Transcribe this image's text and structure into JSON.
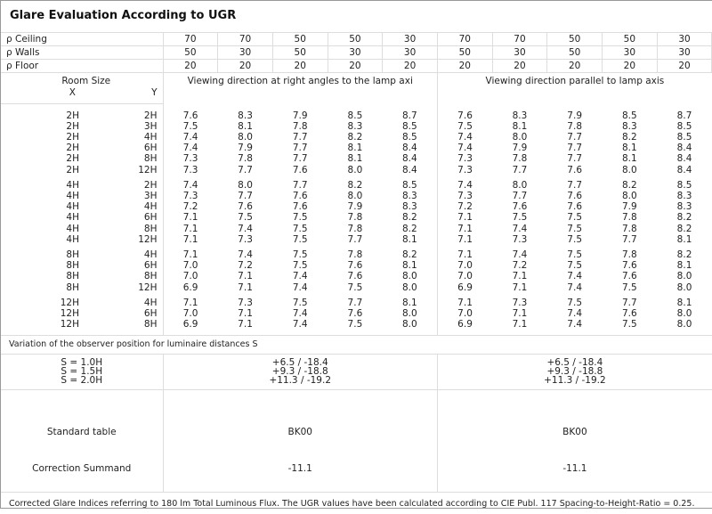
{
  "title": "Glare Evaluation According to UGR",
  "reflectances": [
    {
      "label": "ρ  Ceiling",
      "values": [
        "70",
        "70",
        "50",
        "50",
        "30",
        "70",
        "70",
        "50",
        "50",
        "30"
      ]
    },
    {
      "label": "ρ  Walls",
      "values": [
        "50",
        "30",
        "50",
        "30",
        "30",
        "50",
        "30",
        "50",
        "30",
        "30"
      ]
    },
    {
      "label": "ρ  Floor",
      "values": [
        "20",
        "20",
        "20",
        "20",
        "20",
        "20",
        "20",
        "20",
        "20",
        "20"
      ]
    }
  ],
  "room_size_label": "Room Size",
  "x_label": "X",
  "y_label": "Y",
  "right_angles_header": "Viewing direction at right angles to the lamp axi",
  "parallel_header": "Viewing direction parallel to lamp axis",
  "groups": [
    [
      {
        "x": "2H",
        "y": "2H",
        "right": [
          "7.6",
          "8.3",
          "7.9",
          "8.5",
          "8.7"
        ],
        "parallel": [
          "7.6",
          "8.3",
          "7.9",
          "8.5",
          "8.7"
        ]
      },
      {
        "x": "2H",
        "y": "3H",
        "right": [
          "7.5",
          "8.1",
          "7.8",
          "8.3",
          "8.5"
        ],
        "parallel": [
          "7.5",
          "8.1",
          "7.8",
          "8.3",
          "8.5"
        ]
      },
      {
        "x": "2H",
        "y": "4H",
        "right": [
          "7.4",
          "8.0",
          "7.7",
          "8.2",
          "8.5"
        ],
        "parallel": [
          "7.4",
          "8.0",
          "7.7",
          "8.2",
          "8.5"
        ]
      },
      {
        "x": "2H",
        "y": "6H",
        "right": [
          "7.4",
          "7.9",
          "7.7",
          "8.1",
          "8.4"
        ],
        "parallel": [
          "7.4",
          "7.9",
          "7.7",
          "8.1",
          "8.4"
        ]
      },
      {
        "x": "2H",
        "y": "8H",
        "right": [
          "7.3",
          "7.8",
          "7.7",
          "8.1",
          "8.4"
        ],
        "parallel": [
          "7.3",
          "7.8",
          "7.7",
          "8.1",
          "8.4"
        ]
      },
      {
        "x": "2H",
        "y": "12H",
        "right": [
          "7.3",
          "7.7",
          "7.6",
          "8.0",
          "8.4"
        ],
        "parallel": [
          "7.3",
          "7.7",
          "7.6",
          "8.0",
          "8.4"
        ]
      }
    ],
    [
      {
        "x": "4H",
        "y": "2H",
        "right": [
          "7.4",
          "8.0",
          "7.7",
          "8.2",
          "8.5"
        ],
        "parallel": [
          "7.4",
          "8.0",
          "7.7",
          "8.2",
          "8.5"
        ]
      },
      {
        "x": "4H",
        "y": "3H",
        "right": [
          "7.3",
          "7.7",
          "7.6",
          "8.0",
          "8.3"
        ],
        "parallel": [
          "7.3",
          "7.7",
          "7.6",
          "8.0",
          "8.3"
        ]
      },
      {
        "x": "4H",
        "y": "4H",
        "right": [
          "7.2",
          "7.6",
          "7.6",
          "7.9",
          "8.3"
        ],
        "parallel": [
          "7.2",
          "7.6",
          "7.6",
          "7.9",
          "8.3"
        ]
      },
      {
        "x": "4H",
        "y": "6H",
        "right": [
          "7.1",
          "7.5",
          "7.5",
          "7.8",
          "8.2"
        ],
        "parallel": [
          "7.1",
          "7.5",
          "7.5",
          "7.8",
          "8.2"
        ]
      },
      {
        "x": "4H",
        "y": "8H",
        "right": [
          "7.1",
          "7.4",
          "7.5",
          "7.8",
          "8.2"
        ],
        "parallel": [
          "7.1",
          "7.4",
          "7.5",
          "7.8",
          "8.2"
        ]
      },
      {
        "x": "4H",
        "y": "12H",
        "right": [
          "7.1",
          "7.3",
          "7.5",
          "7.7",
          "8.1"
        ],
        "parallel": [
          "7.1",
          "7.3",
          "7.5",
          "7.7",
          "8.1"
        ]
      }
    ],
    [
      {
        "x": "8H",
        "y": "4H",
        "right": [
          "7.1",
          "7.4",
          "7.5",
          "7.8",
          "8.2"
        ],
        "parallel": [
          "7.1",
          "7.4",
          "7.5",
          "7.8",
          "8.2"
        ]
      },
      {
        "x": "8H",
        "y": "6H",
        "right": [
          "7.0",
          "7.2",
          "7.5",
          "7.6",
          "8.1"
        ],
        "parallel": [
          "7.0",
          "7.2",
          "7.5",
          "7.6",
          "8.1"
        ]
      },
      {
        "x": "8H",
        "y": "8H",
        "right": [
          "7.0",
          "7.1",
          "7.4",
          "7.6",
          "8.0"
        ],
        "parallel": [
          "7.0",
          "7.1",
          "7.4",
          "7.6",
          "8.0"
        ]
      },
      {
        "x": "8H",
        "y": "12H",
        "right": [
          "6.9",
          "7.1",
          "7.4",
          "7.5",
          "8.0"
        ],
        "parallel": [
          "6.9",
          "7.1",
          "7.4",
          "7.5",
          "8.0"
        ]
      }
    ],
    [
      {
        "x": "12H",
        "y": "4H",
        "right": [
          "7.1",
          "7.3",
          "7.5",
          "7.7",
          "8.1"
        ],
        "parallel": [
          "7.1",
          "7.3",
          "7.5",
          "7.7",
          "8.1"
        ]
      },
      {
        "x": "12H",
        "y": "6H",
        "right": [
          "7.0",
          "7.1",
          "7.4",
          "7.6",
          "8.0"
        ],
        "parallel": [
          "7.0",
          "7.1",
          "7.4",
          "7.6",
          "8.0"
        ]
      },
      {
        "x": "12H",
        "y": "8H",
        "right": [
          "6.9",
          "7.1",
          "7.4",
          "7.5",
          "8.0"
        ],
        "parallel": [
          "6.9",
          "7.1",
          "7.4",
          "7.5",
          "8.0"
        ]
      }
    ]
  ],
  "variation_label": "Variation of the observer position for luminaire distances S",
  "variation": [
    {
      "s": "S = 1.0H",
      "right": "+6.5 / -18.4",
      "parallel": "+6.5 / -18.4"
    },
    {
      "s": "S = 1.5H",
      "right": "+9.3 / -18.8",
      "parallel": "+9.3 / -18.8"
    },
    {
      "s": "S = 2.0H",
      "right": "+11.3 / -19.2",
      "parallel": "+11.3 / -19.2"
    }
  ],
  "standard_table": {
    "label": "Standard table",
    "right": "BK00",
    "parallel": "BK00"
  },
  "correction": {
    "label": "Correction Summand",
    "right": "-11.1",
    "parallel": "-11.1"
  },
  "footer": "Corrected Glare Indices referring to 180 lm Total Luminous Flux. The UGR values have been calculated according to CIE Publ. 117    Spacing-to-Height-Ratio = 0.25."
}
